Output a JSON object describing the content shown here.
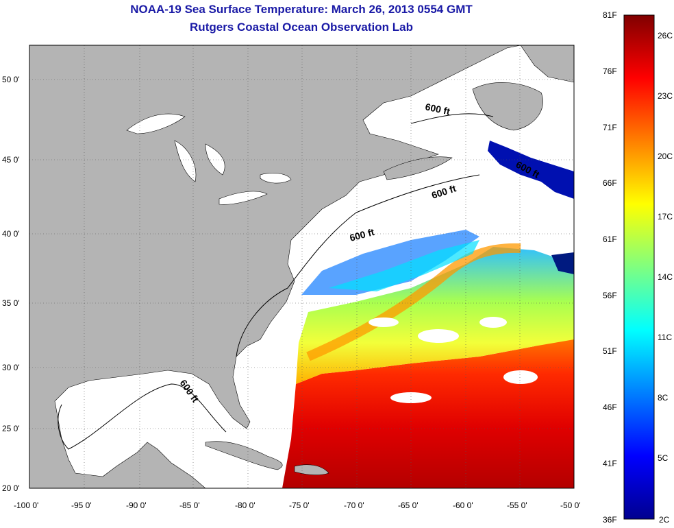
{
  "header": {
    "title": "NOAA-19 Sea Surface Temperature:  March 26, 2013 0554 GMT",
    "subtitle": "Rutgers Coastal Ocean Observation Lab"
  },
  "map": {
    "lon_range": [
      -100,
      -50
    ],
    "lat_range": [
      20,
      52.5
    ],
    "lon_ticks": [
      "-100 0'",
      "-95 0'",
      "-90 0'",
      "-85 0'",
      "-80 0'",
      "-75 0'",
      "-70 0'",
      "-65 0'",
      "-60 0'",
      "-55 0'",
      "-50 0'"
    ],
    "lat_ticks": [
      "50 0'",
      "45 0'",
      "40 0'",
      "35 0'",
      "30 0'",
      "25 0'",
      "20 0'"
    ],
    "contour_labels": [
      "600 ft",
      "600 ft",
      "600 ft",
      "600 ft",
      "600 ft"
    ],
    "colors": {
      "land": "#b4b4b4",
      "ocean_nodata": "#ffffff"
    }
  },
  "colorbar": {
    "f_labels": [
      "81F",
      "76F",
      "71F",
      "66F",
      "61F",
      "56F",
      "51F",
      "46F",
      "41F",
      "36F"
    ],
    "c_labels": [
      "26C",
      "23C",
      "20C",
      "17C",
      "14C",
      "11C",
      "8C",
      "5C",
      "2C"
    ],
    "colormap": [
      "#00008f",
      "#0000ff",
      "#00ffff",
      "#ffff00",
      "#ff0000",
      "#800000"
    ]
  }
}
